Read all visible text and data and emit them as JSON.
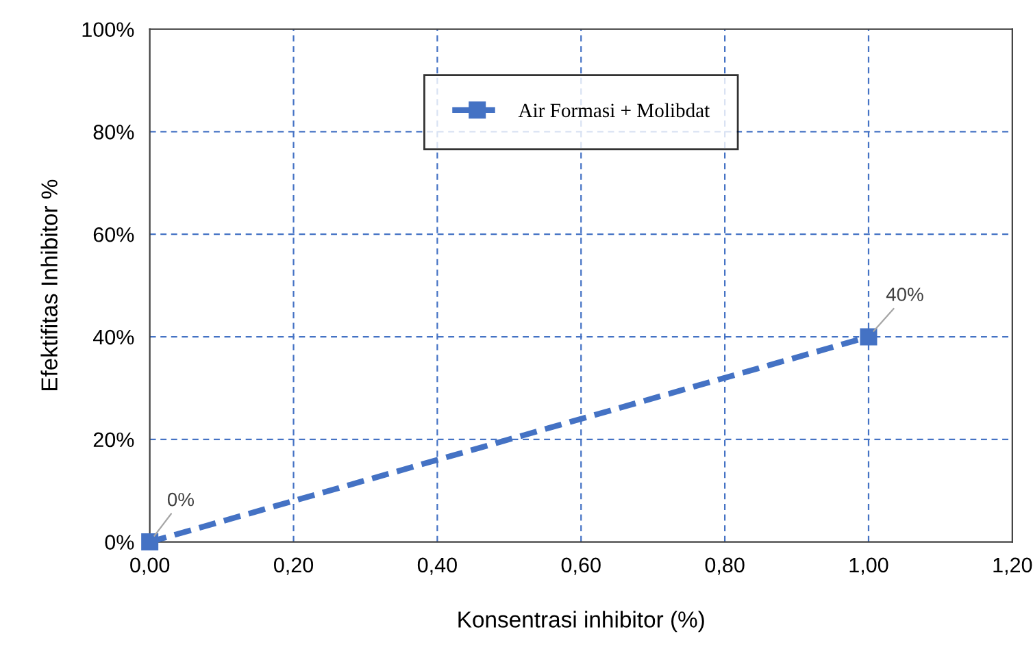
{
  "chart_data": {
    "type": "line",
    "xlabel": "Konsentrasi inhibitor (%)",
    "ylabel": "Efektifitas Inhibitor %",
    "x": [
      0,
      1
    ],
    "series": [
      {
        "name": "Air Formasi + Molibdat",
        "color": "#4472c4",
        "values": [
          0,
          40
        ],
        "value_labels": [
          "0%",
          "40%"
        ]
      }
    ],
    "xlim": [
      0,
      1.2
    ],
    "ylim": [
      0,
      100
    ],
    "xticks": [
      {
        "value": 0,
        "label": "0,00"
      },
      {
        "value": 0.2,
        "label": "0,20"
      },
      {
        "value": 0.4,
        "label": "0,40"
      },
      {
        "value": 0.6,
        "label": "0,60"
      },
      {
        "value": 0.8,
        "label": "0,80"
      },
      {
        "value": 1,
        "label": "1,00"
      },
      {
        "value": 1.2,
        "label": "1,20"
      }
    ],
    "yticks": [
      {
        "value": 0,
        "label": "0%"
      },
      {
        "value": 20,
        "label": "20%"
      },
      {
        "value": 40,
        "label": "40%"
      },
      {
        "value": 60,
        "label": "60%"
      },
      {
        "value": 80,
        "label": "80%"
      },
      {
        "value": 100,
        "label": "100%"
      }
    ],
    "grid": true,
    "legend": "top",
    "marker": "square",
    "line_style": "dashed"
  }
}
